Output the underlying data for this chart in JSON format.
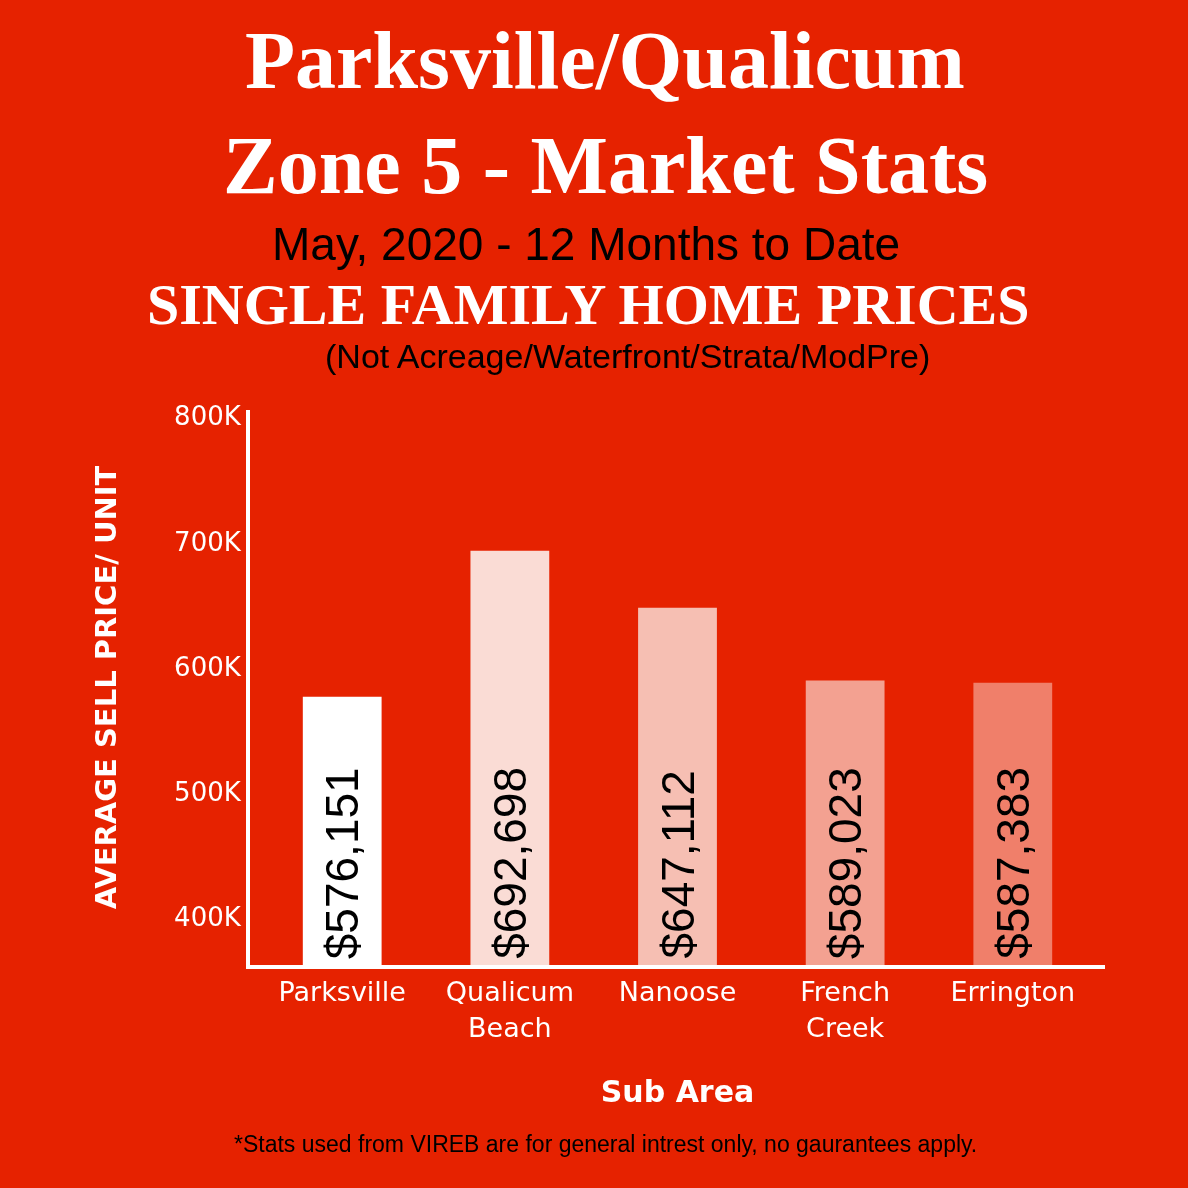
{
  "chart_data": {
    "type": "bar",
    "title": "Parksville/Qualicum\nZone 5 - Market Stats",
    "subtitle": "May, 2020 - 12 Months to Date",
    "annotations": [
      "SINGLE FAMILY HOME PRICES",
      "(Not Acreage/Waterfront/Strata/ModPre)",
      "*Stats used from VIREB are for general intrest only, no gaurantees apply."
    ],
    "xlabel": "Sub Area",
    "ylabel": "AVERAGE SELL PRICE/ UNIT",
    "categories": [
      "Parksville",
      "Qualicum Beach",
      "Nanoose",
      "French Creek",
      "Errington"
    ],
    "values": [
      576151,
      692698,
      647112,
      589023,
      587383
    ],
    "value_labels": [
      "$576,151",
      "$692,698",
      "$647,112",
      "$589,023",
      "$587,383"
    ],
    "colors": [
      "#ffffff",
      "#fadcd5",
      "#f6bfb3",
      "#f3a191",
      "#f07f6a"
    ],
    "ylim": [
      362000,
      805000
    ],
    "yticks": [
      {
        "value": 400000,
        "label": "400K"
      },
      {
        "value": 500000,
        "label": "500K"
      },
      {
        "value": 600000,
        "label": "600K"
      },
      {
        "value": 700000,
        "label": "700K"
      },
      {
        "value": 800000,
        "label": "800K"
      }
    ],
    "grid": false,
    "legend": false
  }
}
